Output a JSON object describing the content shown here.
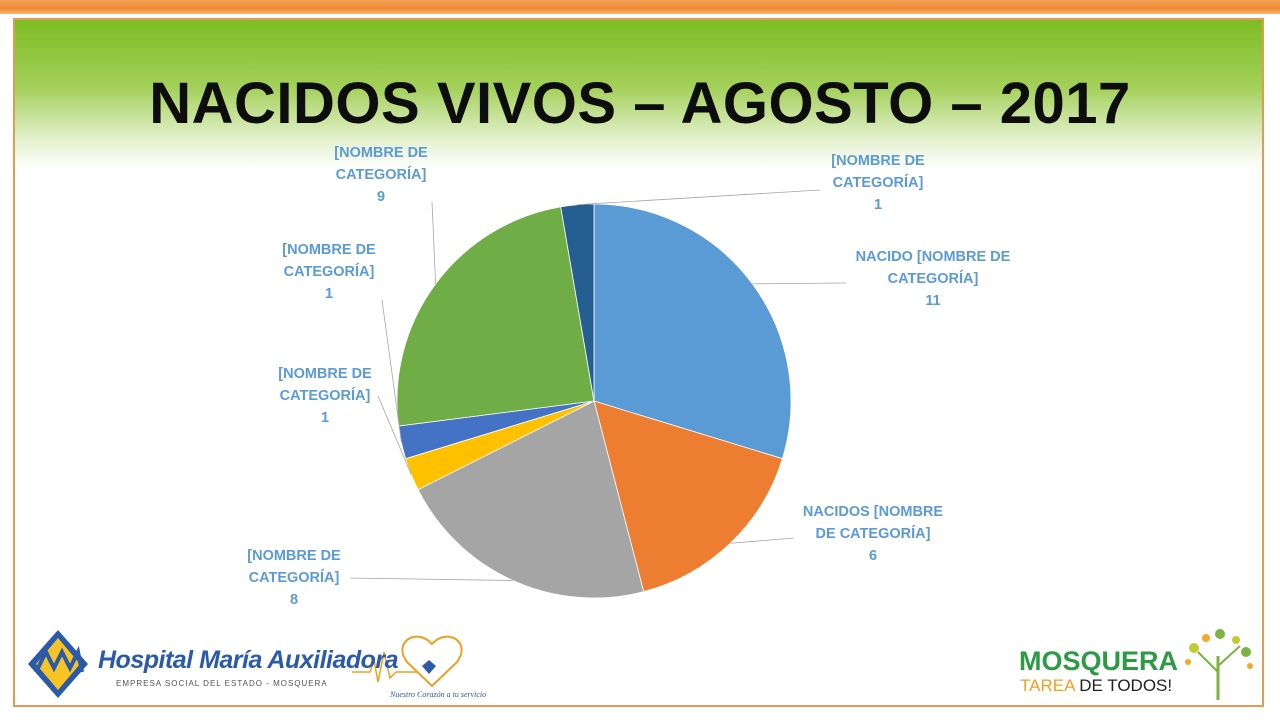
{
  "slide": {
    "title": "NACIDOS VIVOS – AGOSTO – 2017"
  },
  "chart_data": {
    "type": "pie",
    "title": "",
    "slices": [
      {
        "label": "NACIDO [NOMBRE DE CATEGORÍA]",
        "value": 11,
        "color": "#5b9bd5"
      },
      {
        "label": "NACIDOS [NOMBRE DE CATEGORÍA]",
        "value": 6,
        "color": "#ed7d31"
      },
      {
        "label": "[NOMBRE DE CATEGORÍA]",
        "value": 8,
        "color": "#a5a5a5"
      },
      {
        "label": "[NOMBRE DE CATEGORÍA]",
        "value": 1,
        "color": "#ffc000"
      },
      {
        "label": "[NOMBRE DE CATEGORÍA]",
        "value": 1,
        "color": "#4472c4"
      },
      {
        "label": "[NOMBRE DE CATEGORÍA]",
        "value": 9,
        "color": "#70ad47"
      },
      {
        "label": "[NOMBRE DE CATEGORÍA]",
        "value": 1,
        "color": "#255e91"
      }
    ],
    "data_labels": [
      {
        "lines": [
          "NACIDO [NOMBRE DE",
          "CATEGORÍA]",
          "11"
        ]
      },
      {
        "lines": [
          "NACIDOS [NOMBRE",
          "DE CATEGORÍA]",
          "6"
        ]
      },
      {
        "lines": [
          "[NOMBRE DE",
          "CATEGORÍA]",
          "8"
        ]
      },
      {
        "lines": [
          "[NOMBRE DE",
          "CATEGORÍA]",
          "1"
        ]
      },
      {
        "lines": [
          "[NOMBRE DE",
          "CATEGORÍA]",
          "1"
        ]
      },
      {
        "lines": [
          "[NOMBRE DE",
          "CATEGORÍA]",
          "9"
        ]
      },
      {
        "lines": [
          "[NOMBRE DE",
          "CATEGORÍA]",
          "1"
        ]
      }
    ]
  },
  "logos": {
    "hospital_name": "Hospital María Auxiliadora",
    "hospital_subtitle": "EMPRESA SOCIAL DEL ESTADO - MOSQUERA",
    "hospital_slogan": "Nuestro Corazón a tu servicio",
    "municipality_name": "MOSQUERA",
    "municipality_slogan_part1": "TAREA",
    "municipality_slogan_part2": " DE TODOS!"
  }
}
